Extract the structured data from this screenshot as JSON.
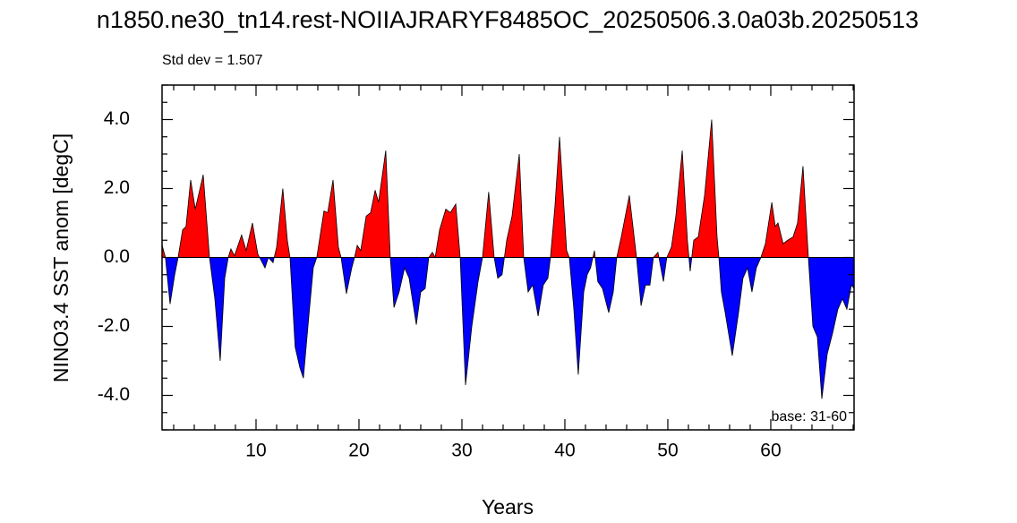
{
  "chart_data": {
    "type": "area",
    "title": "n1850.ne30_tn14.rest-NOIIAJRARYF8485OC_20250506.3.0a03b.20250513",
    "subtitle": "Std dev = 1.507",
    "annotation": "base: 31-60",
    "xlabel": "Years",
    "ylabel": "NINO3.4 SST anom [degC]",
    "x": [
      0.87,
      1.2,
      1.65,
      2.1,
      2.43,
      2.87,
      3.2,
      3.65,
      4.1,
      4.87,
      5.48,
      6.0,
      6.52,
      6.96,
      7.3,
      7.56,
      7.9,
      8.6,
      9.04,
      9.65,
      10.17,
      10.87,
      11.2,
      11.65,
      12.0,
      12.6,
      13.04,
      13.3,
      13.8,
      14.26,
      14.6,
      15.13,
      15.56,
      15.9,
      16.6,
      16.96,
      17.48,
      18.0,
      18.26,
      18.78,
      19.3,
      19.57,
      19.83,
      20.17,
      20.7,
      21.13,
      21.57,
      21.9,
      22.6,
      23.04,
      23.4,
      23.9,
      24.43,
      24.87,
      25.57,
      26.0,
      26.43,
      26.78,
      27.13,
      27.4,
      27.83,
      28.43,
      28.87,
      29.4,
      29.83,
      30.35,
      30.96,
      31.57,
      32.0,
      32.6,
      33.13,
      33.48,
      33.9,
      34.35,
      34.87,
      35.57,
      36.0,
      36.43,
      36.87,
      37.4,
      37.9,
      38.35,
      38.6,
      39.04,
      39.48,
      40.17,
      40.43,
      40.87,
      41.3,
      41.83,
      42.17,
      42.5,
      42.87,
      43.2,
      43.65,
      44.26,
      44.7,
      45.04,
      45.48,
      46.26,
      46.96,
      47.4,
      47.83,
      48.26,
      48.6,
      49.04,
      49.57,
      49.9,
      50.35,
      50.78,
      51.4,
      51.9,
      52.17,
      52.52,
      52.96,
      53.57,
      54.26,
      54.78,
      54.96,
      55.2,
      55.57,
      56.26,
      56.87,
      57.3,
      57.74,
      58.17,
      58.6,
      59.04,
      59.48,
      60.1,
      60.43,
      60.7,
      61.2,
      61.65,
      62.17,
      62.6,
      63.13,
      63.65,
      64.09,
      64.52,
      64.96,
      65.48,
      66.0,
      66.52,
      66.96,
      67.39,
      67.83,
      68.09
    ],
    "values": [
      0.36,
      0,
      -1.35,
      -0.5,
      0,
      0.8,
      0.9,
      2.25,
      1.4,
      2.4,
      0,
      -1.2,
      -3.0,
      -0.6,
      0,
      0.25,
      0.05,
      0.65,
      0.2,
      1.0,
      0.1,
      -0.3,
      0,
      -0.15,
      0.3,
      2.0,
      0.5,
      0,
      -2.6,
      -3.2,
      -3.5,
      -1.7,
      -0.3,
      0,
      1.35,
      1.3,
      2.25,
      0.3,
      0,
      -1.05,
      -0.3,
      0,
      0.35,
      0.2,
      1.2,
      1.3,
      1.95,
      1.6,
      3.1,
      0,
      -1.45,
      -1.0,
      -0.3,
      -0.6,
      -1.95,
      -1.0,
      -0.9,
      0,
      0.15,
      0,
      0.8,
      1.4,
      1.3,
      1.55,
      0,
      -3.7,
      -2.0,
      -0.7,
      0,
      1.9,
      0,
      -0.6,
      -0.5,
      0.5,
      1.2,
      3.0,
      0,
      -1.0,
      -0.8,
      -1.7,
      -0.8,
      -0.6,
      0,
      1.5,
      3.5,
      0.2,
      0,
      -1.5,
      -3.4,
      -1.0,
      -0.5,
      -0.3,
      0.2,
      -0.7,
      -0.9,
      -1.6,
      -1.0,
      0,
      0.6,
      1.8,
      0,
      -1.4,
      -0.8,
      -0.8,
      0,
      0.15,
      -0.7,
      0,
      0.3,
      1.2,
      3.1,
      0.5,
      -0.4,
      0.5,
      0.6,
      1.8,
      4.0,
      0.6,
      0,
      -1.0,
      -1.6,
      -2.85,
      -1.6,
      -0.6,
      -0.3,
      -1.0,
      -0.3,
      0,
      0.4,
      1.6,
      0.9,
      1.0,
      0.4,
      0.5,
      0.6,
      1.0,
      2.65,
      0,
      -2.0,
      -2.3,
      -4.1,
      -2.8,
      -2.2,
      -1.5,
      -1.2,
      -1.5,
      -0.8,
      -0.9
    ],
    "positive_color": "#ff0000",
    "negative_color": "#0000ff",
    "xlim": [
      0.87,
      68.09
    ],
    "ylim": [
      -5,
      5
    ],
    "xticks": [
      10,
      20,
      30,
      40,
      50,
      60
    ],
    "xminorticks": [
      2,
      4,
      6,
      8,
      12,
      14,
      16,
      18,
      22,
      24,
      26,
      28,
      32,
      34,
      36,
      38,
      42,
      44,
      46,
      48,
      52,
      54,
      56,
      58,
      62,
      64,
      66,
      68
    ],
    "yticks": [
      {
        "value": -4,
        "label": "-4.0"
      },
      {
        "value": -2,
        "label": "-2.0"
      },
      {
        "value": 0,
        "label": "0.0"
      },
      {
        "value": 2,
        "label": "2.0"
      },
      {
        "value": 4,
        "label": "4.0"
      }
    ],
    "yminorticks": [
      -5,
      -4.5,
      -3.5,
      -3,
      -2.5,
      -1.5,
      -1,
      -0.5,
      0.5,
      1,
      1.5,
      2.5,
      3,
      3.5,
      4.5,
      5
    ]
  }
}
